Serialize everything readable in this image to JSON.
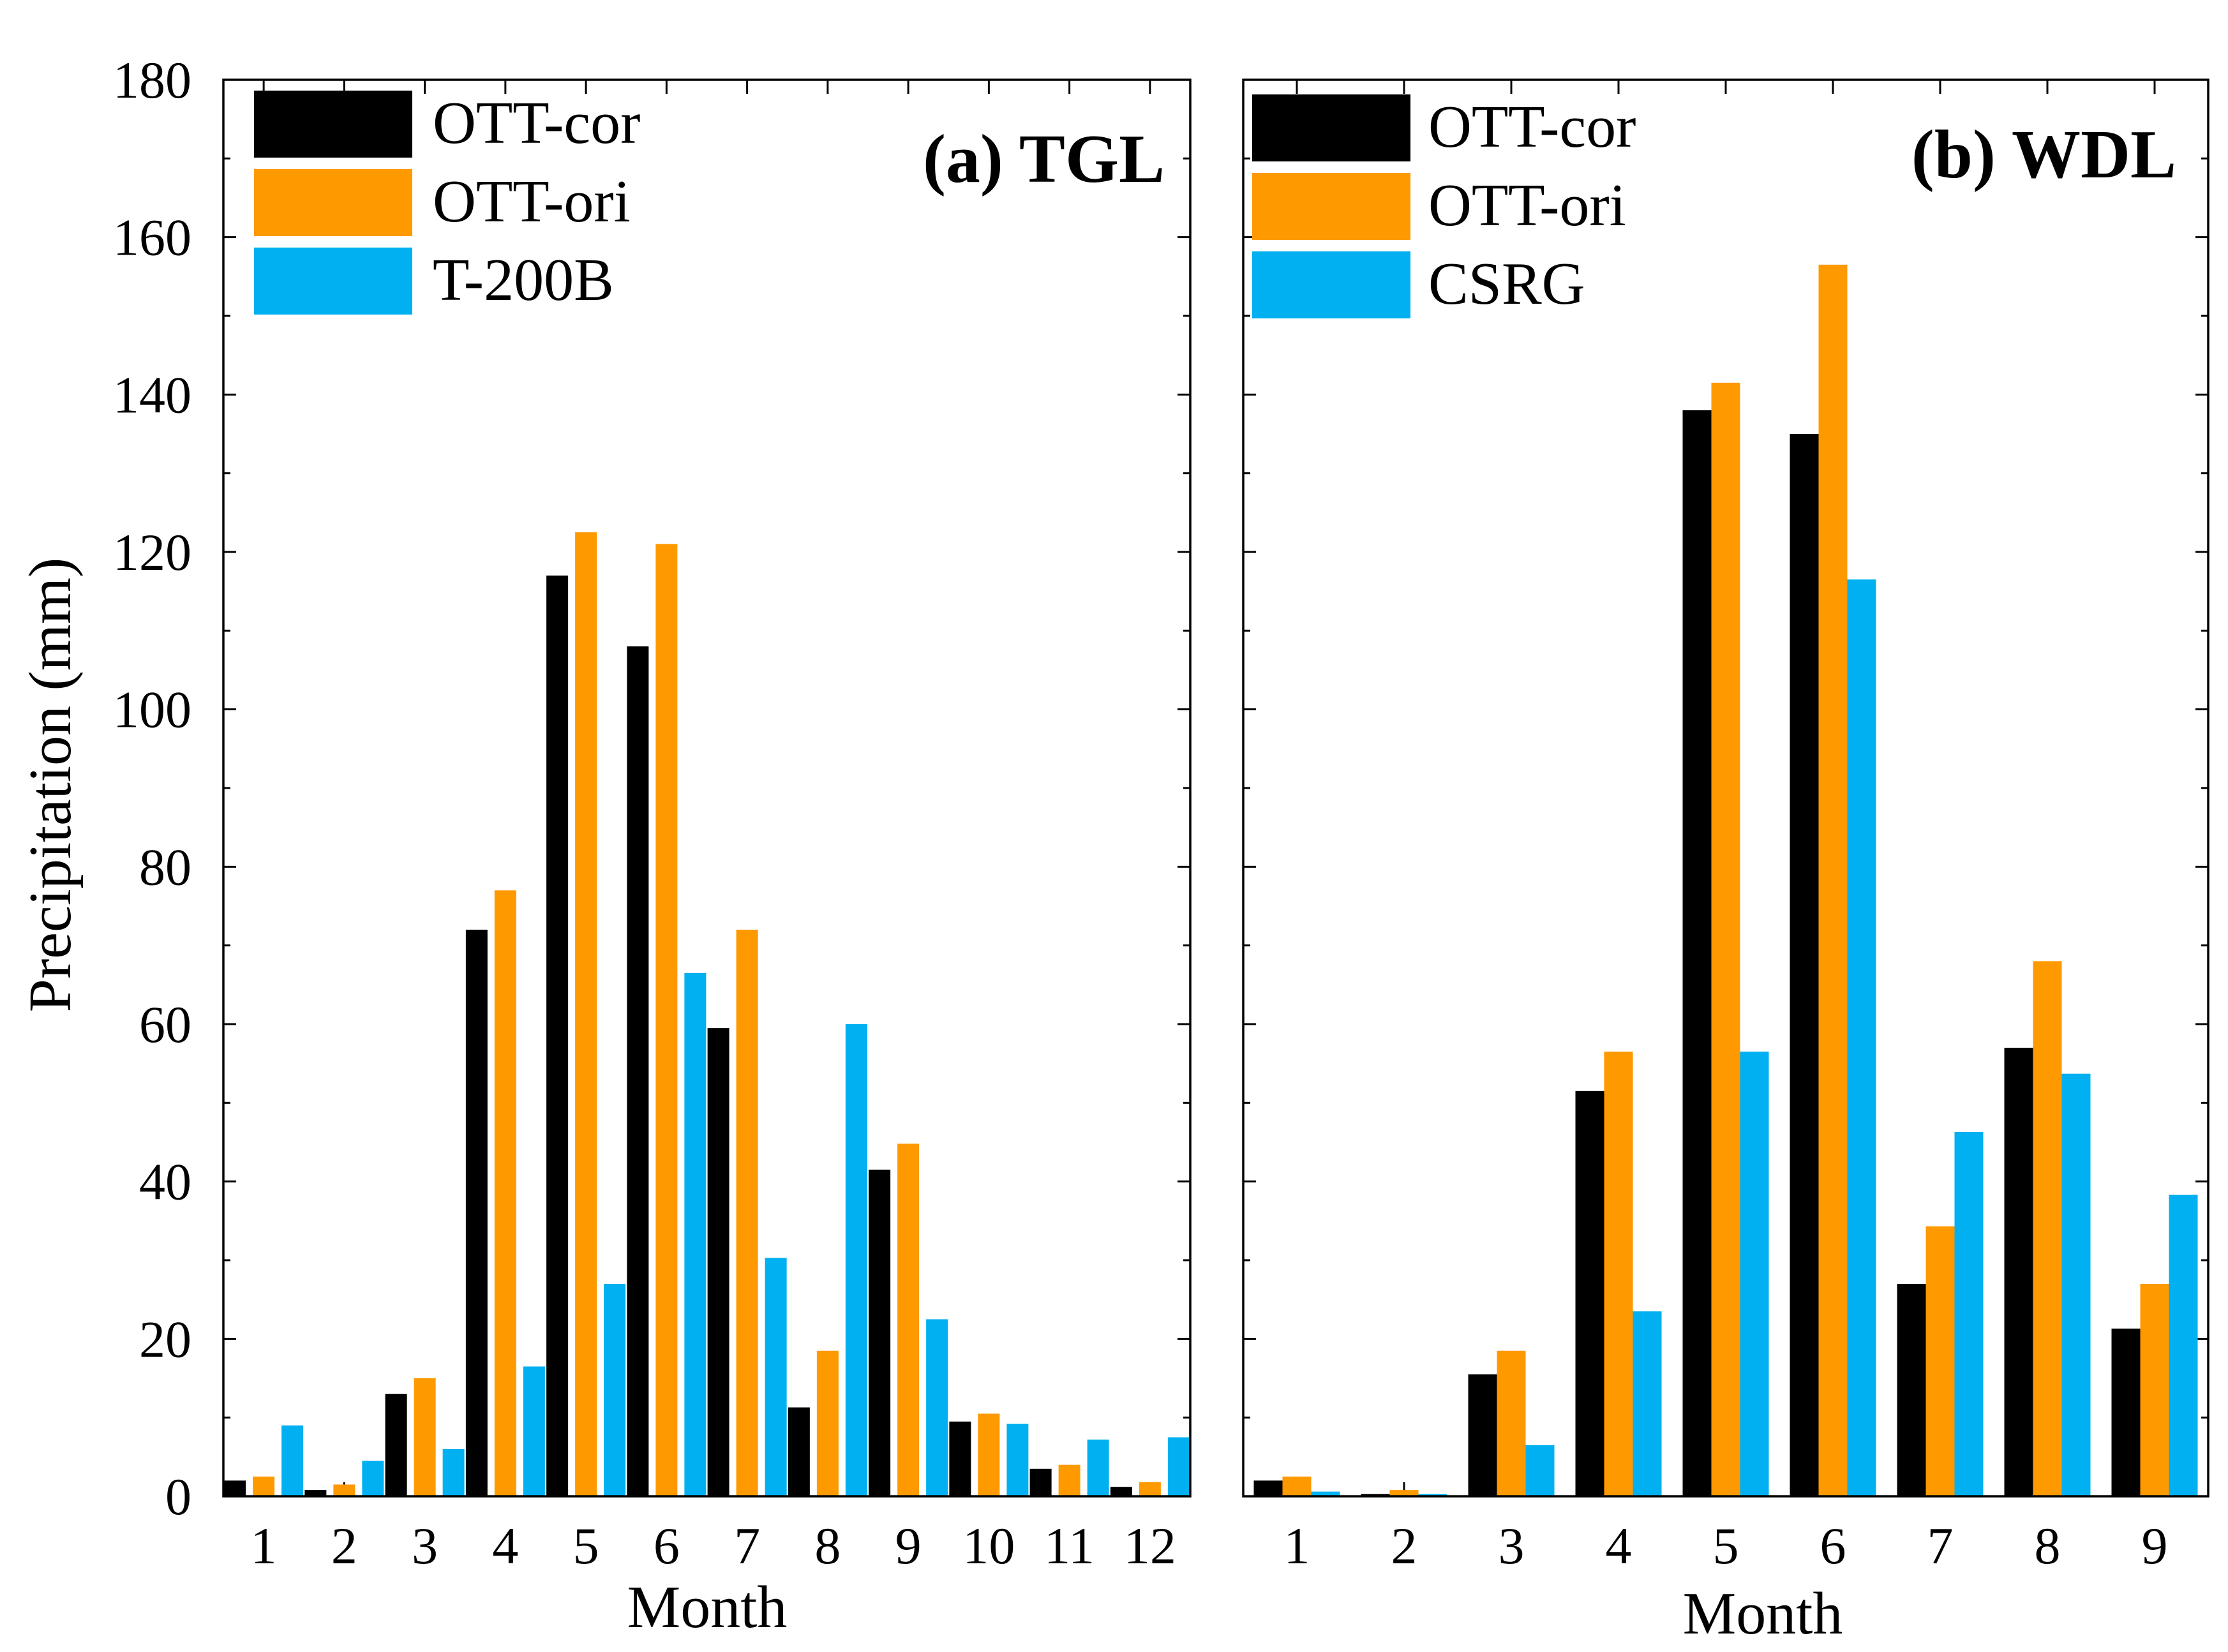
{
  "chart_data": [
    {
      "type": "bar",
      "title": "(a) TGL",
      "xlabel": "Month",
      "ylabel": "Precipitation (mm)",
      "ylim": [
        0,
        180
      ],
      "yticks": [
        "0",
        "20",
        "40",
        "60",
        "80",
        "100",
        "120",
        "140",
        "160",
        "180"
      ],
      "categories": [
        "1",
        "2",
        "3",
        "4",
        "5",
        "6",
        "7",
        "8",
        "9",
        "10",
        "11",
        "12"
      ],
      "legend_position": "top-left",
      "series": [
        {
          "name": "OTT-cor",
          "color": "#000000",
          "values": [
            2.0,
            0.8,
            13.0,
            72.0,
            117.0,
            108.0,
            59.5,
            11.3,
            41.5,
            9.5,
            3.5,
            1.2
          ]
        },
        {
          "name": "OTT-ori",
          "color": "#FF9900",
          "values": [
            2.5,
            1.5,
            15.0,
            77.0,
            122.5,
            121.0,
            72.0,
            18.5,
            44.8,
            10.5,
            4.0,
            1.8
          ]
        },
        {
          "name": "T-200B",
          "color": "#00B0F0",
          "values": [
            9.0,
            4.5,
            6.0,
            16.5,
            27.0,
            66.5,
            30.3,
            60.0,
            22.5,
            9.2,
            7.2,
            7.5
          ]
        }
      ]
    },
    {
      "type": "bar",
      "title": "(b) WDL",
      "xlabel": "Month",
      "ylim": [
        0,
        180
      ],
      "categories": [
        "1",
        "2",
        "3",
        "4",
        "5",
        "6",
        "7",
        "8",
        "9"
      ],
      "legend_position": "top-left",
      "series": [
        {
          "name": "OTT-cor",
          "color": "#000000",
          "values": [
            2.0,
            0.3,
            15.5,
            51.5,
            138.0,
            135.0,
            27.0,
            57.0,
            21.3
          ]
        },
        {
          "name": "OTT-ori",
          "color": "#FF9900",
          "values": [
            2.5,
            0.8,
            18.5,
            56.5,
            141.5,
            156.5,
            34.3,
            68.0,
            27.0
          ]
        },
        {
          "name": "CSRG",
          "color": "#00B0F0",
          "values": [
            0.6,
            0.3,
            6.5,
            23.5,
            56.5,
            116.5,
            46.3,
            53.7,
            38.3
          ]
        }
      ]
    }
  ]
}
